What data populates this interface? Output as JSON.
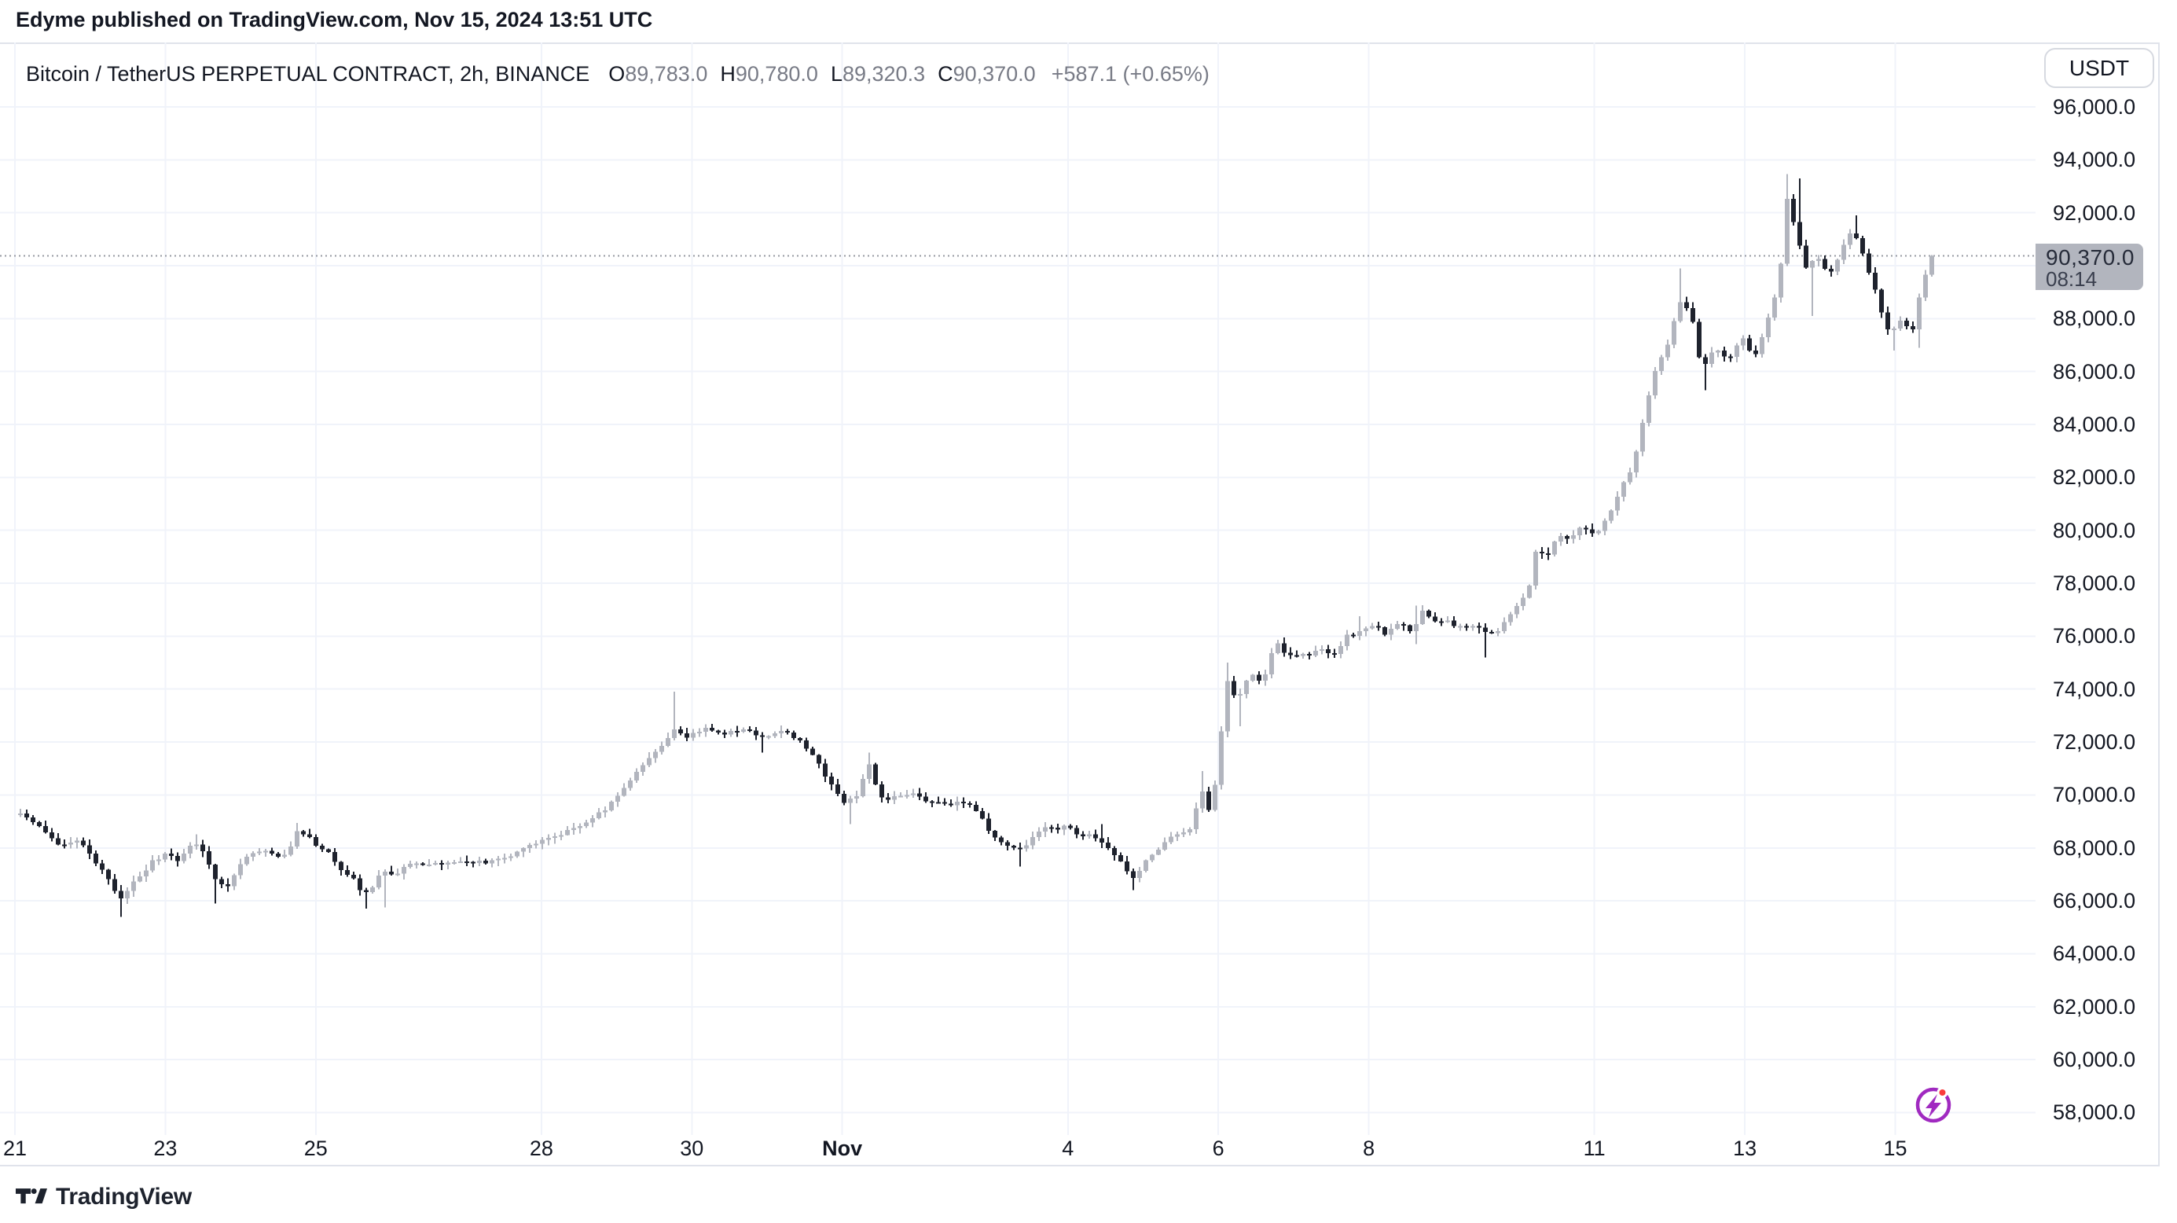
{
  "published_line": "Edyme published on TradingView.com, Nov 15, 2024 13:51 UTC",
  "chart_header": {
    "symbol_title": "Bitcoin / TetherUS PERPETUAL CONTRACT, 2h, BINANCE",
    "ohlc": {
      "o_label": "O",
      "o": "89,783.0",
      "h_label": "H",
      "h": "90,780.0",
      "l_label": "L",
      "l": "89,320.3",
      "c_label": "C",
      "c": "90,370.0",
      "change": "+587.1 (+0.65%)"
    }
  },
  "price_axis": {
    "currency_label": "USDT",
    "labels": [
      {
        "value": 96000,
        "text": "96,000.0"
      },
      {
        "value": 94000,
        "text": "94,000.0"
      },
      {
        "value": 92000,
        "text": "92,000.0"
      },
      {
        "value": 88000,
        "text": "88,000.0"
      },
      {
        "value": 86000,
        "text": "86,000.0"
      },
      {
        "value": 84000,
        "text": "84,000.0"
      },
      {
        "value": 82000,
        "text": "82,000.0"
      },
      {
        "value": 80000,
        "text": "80,000.0"
      },
      {
        "value": 78000,
        "text": "78,000.0"
      },
      {
        "value": 76000,
        "text": "76,000.0"
      },
      {
        "value": 74000,
        "text": "74,000.0"
      },
      {
        "value": 72000,
        "text": "72,000.0"
      },
      {
        "value": 70000,
        "text": "70,000.0"
      },
      {
        "value": 68000,
        "text": "68,000.0"
      },
      {
        "value": 66000,
        "text": "66,000.0"
      },
      {
        "value": 64000,
        "text": "64,000.0"
      },
      {
        "value": 62000,
        "text": "62,000.0"
      },
      {
        "value": 60000,
        "text": "60,000.0"
      },
      {
        "value": 58000,
        "text": "58,000.0"
      }
    ],
    "last_price_badge": {
      "text": "90,370.0",
      "countdown": "08:14",
      "value": 90370
    }
  },
  "time_axis": {
    "ticks": [
      {
        "day": 0,
        "label": "21",
        "bold": false
      },
      {
        "day": 2,
        "label": "23",
        "bold": false
      },
      {
        "day": 4,
        "label": "25",
        "bold": false
      },
      {
        "day": 7,
        "label": "28",
        "bold": false
      },
      {
        "day": 9,
        "label": "30",
        "bold": false
      },
      {
        "day": 11,
        "label": "Nov",
        "bold": true
      },
      {
        "day": 14,
        "label": "4",
        "bold": false
      },
      {
        "day": 16,
        "label": "6",
        "bold": false
      },
      {
        "day": 18,
        "label": "8",
        "bold": false
      },
      {
        "day": 21,
        "label": "11",
        "bold": false
      },
      {
        "day": 23,
        "label": "13",
        "bold": false
      },
      {
        "day": 25,
        "label": "15",
        "bold": false
      }
    ]
  },
  "footer": {
    "brand": "TradingView"
  },
  "colors": {
    "up": "#B2B5BE",
    "down": "#1E222D",
    "grid": "#F0F3FA",
    "frame": "#E0E3EB",
    "text": "#131722",
    "muted": "#787B86",
    "dotted_line": "#9598A1",
    "badge_bg": "#B2B5BE",
    "accent_purple": "#A02AC0",
    "accent_red": "#FA3C3C"
  },
  "chart_data": {
    "type": "candlestick",
    "title": "Bitcoin / TetherUS PERPETUAL CONTRACT, 2h, BINANCE",
    "symbol": "BTCUSDT PERPETUAL",
    "exchange": "BINANCE",
    "timeframe": "2h",
    "quote_unit": "USDT",
    "grid": true,
    "legend_position": "none",
    "x_axis": {
      "unit": "days_since_Oct21_2024_00utc",
      "visible_range": [
        0,
        26.9
      ],
      "tick_days": [
        0,
        2,
        4,
        7,
        9,
        11,
        14,
        16,
        18,
        21,
        23,
        25
      ]
    },
    "y_axis": {
      "visible_range": [
        56700,
        98400
      ],
      "tick_step": 2000,
      "ticks": [
        58000,
        60000,
        62000,
        64000,
        66000,
        68000,
        70000,
        72000,
        74000,
        76000,
        78000,
        80000,
        82000,
        84000,
        86000,
        88000,
        90000,
        92000,
        94000,
        96000
      ]
    },
    "ohlc_current": {
      "open": 89783.0,
      "high": 90780.0,
      "low": 89320.3,
      "close": 90370.0,
      "change": 587.1,
      "change_pct": 0.65
    },
    "last_close": 90370,
    "key_points": {
      "period_low": 65400,
      "oct29_high": 73900,
      "nov13_high": 93458,
      "last_close": 90370
    },
    "close_path_anchors": [
      [
        -0.11,
        69500
      ],
      [
        0.11,
        69250
      ],
      [
        0.38,
        68800
      ],
      [
        0.64,
        68150
      ],
      [
        0.84,
        68300
      ],
      [
        1.04,
        67800
      ],
      [
        1.26,
        66900
      ],
      [
        1.45,
        66100
      ],
      [
        1.63,
        66700
      ],
      [
        1.84,
        67400
      ],
      [
        2.04,
        67800
      ],
      [
        2.23,
        67500
      ],
      [
        2.39,
        68200
      ],
      [
        2.53,
        67900
      ],
      [
        2.7,
        66900
      ],
      [
        2.85,
        66500
      ],
      [
        3.02,
        67300
      ],
      [
        3.16,
        67800
      ],
      [
        3.36,
        67900
      ],
      [
        3.54,
        67600
      ],
      [
        3.68,
        67800
      ],
      [
        3.79,
        68600
      ],
      [
        3.92,
        68550
      ],
      [
        4.06,
        68100
      ],
      [
        4.21,
        67800
      ],
      [
        4.37,
        67100
      ],
      [
        4.52,
        66900
      ],
      [
        4.66,
        66200
      ],
      [
        4.79,
        66500
      ],
      [
        4.92,
        67100
      ],
      [
        5.07,
        66900
      ],
      [
        5.25,
        67300
      ],
      [
        5.5,
        67450
      ],
      [
        5.75,
        67350
      ],
      [
        6.06,
        67500
      ],
      [
        6.37,
        67450
      ],
      [
        6.69,
        67800
      ],
      [
        7.0,
        68250
      ],
      [
        7.3,
        68550
      ],
      [
        7.57,
        68900
      ],
      [
        7.86,
        69400
      ],
      [
        8.15,
        70300
      ],
      [
        8.41,
        71200
      ],
      [
        8.65,
        71900
      ],
      [
        8.79,
        72500
      ],
      [
        8.97,
        72200
      ],
      [
        9.19,
        72500
      ],
      [
        9.46,
        72300
      ],
      [
        9.72,
        72450
      ],
      [
        9.97,
        72250
      ],
      [
        10.24,
        72400
      ],
      [
        10.47,
        72100
      ],
      [
        10.69,
        71300
      ],
      [
        10.89,
        70400
      ],
      [
        11.09,
        69650
      ],
      [
        11.25,
        70050
      ],
      [
        11.4,
        71200
      ],
      [
        11.55,
        69900
      ],
      [
        11.7,
        69850
      ],
      [
        11.86,
        70000
      ],
      [
        12.01,
        70100
      ],
      [
        12.16,
        69750
      ],
      [
        12.31,
        69800
      ],
      [
        12.47,
        69600
      ],
      [
        12.62,
        69800
      ],
      [
        12.77,
        69550
      ],
      [
        12.92,
        69000
      ],
      [
        13.08,
        68300
      ],
      [
        13.23,
        68050
      ],
      [
        13.33,
        67950
      ],
      [
        13.48,
        68100
      ],
      [
        13.63,
        68500
      ],
      [
        13.74,
        68850
      ],
      [
        13.89,
        68700
      ],
      [
        14.04,
        68900
      ],
      [
        14.16,
        68550
      ],
      [
        14.3,
        68450
      ],
      [
        14.45,
        68350
      ],
      [
        14.6,
        67900
      ],
      [
        14.75,
        67400
      ],
      [
        14.91,
        66850
      ],
      [
        15.06,
        67400
      ],
      [
        15.21,
        67850
      ],
      [
        15.36,
        68300
      ],
      [
        15.52,
        68500
      ],
      [
        15.67,
        68750
      ],
      [
        15.82,
        70200
      ],
      [
        15.9,
        69300
      ],
      [
        15.97,
        69900
      ],
      [
        16.05,
        71400
      ],
      [
        16.15,
        74400
      ],
      [
        16.28,
        73500
      ],
      [
        16.4,
        74300
      ],
      [
        16.52,
        74650
      ],
      [
        16.63,
        74150
      ],
      [
        16.79,
        75850
      ],
      [
        16.91,
        75350
      ],
      [
        17.09,
        75200
      ],
      [
        17.29,
        75350
      ],
      [
        17.45,
        75500
      ],
      [
        17.6,
        75300
      ],
      [
        17.75,
        76000
      ],
      [
        17.9,
        76150
      ],
      [
        18.11,
        76400
      ],
      [
        18.26,
        76100
      ],
      [
        18.41,
        76450
      ],
      [
        18.62,
        76200
      ],
      [
        18.77,
        77100
      ],
      [
        18.92,
        76500
      ],
      [
        19.08,
        76550
      ],
      [
        19.28,
        76350
      ],
      [
        19.43,
        76450
      ],
      [
        19.58,
        76100
      ],
      [
        19.74,
        76200
      ],
      [
        19.89,
        76700
      ],
      [
        20.04,
        77300
      ],
      [
        20.16,
        77600
      ],
      [
        20.27,
        79400
      ],
      [
        20.4,
        78900
      ],
      [
        20.55,
        79900
      ],
      [
        20.7,
        79600
      ],
      [
        20.85,
        80100
      ],
      [
        21.06,
        79800
      ],
      [
        21.23,
        80500
      ],
      [
        21.41,
        81700
      ],
      [
        21.55,
        82400
      ],
      [
        21.7,
        84300
      ],
      [
        21.85,
        86100
      ],
      [
        22.01,
        87000
      ],
      [
        22.17,
        88600
      ],
      [
        22.33,
        88200
      ],
      [
        22.47,
        86000
      ],
      [
        22.64,
        87000
      ],
      [
        22.82,
        86400
      ],
      [
        23.0,
        87300
      ],
      [
        23.16,
        86500
      ],
      [
        23.34,
        87900
      ],
      [
        23.5,
        89400
      ],
      [
        23.6,
        92600
      ],
      [
        23.73,
        91100
      ],
      [
        23.86,
        89900
      ],
      [
        24.0,
        90400
      ],
      [
        24.15,
        89600
      ],
      [
        24.31,
        90500
      ],
      [
        24.46,
        91400
      ],
      [
        24.63,
        90300
      ],
      [
        24.8,
        88800
      ],
      [
        24.96,
        87400
      ],
      [
        25.12,
        87900
      ],
      [
        25.28,
        87600
      ],
      [
        25.4,
        89300
      ],
      [
        25.51,
        90370
      ]
    ],
    "wick_extremes": [
      {
        "t": 1.45,
        "type": "low",
        "price": 65400
      },
      {
        "t": 2.39,
        "type": "high",
        "price": 68520
      },
      {
        "t": 2.7,
        "type": "low",
        "price": 65900
      },
      {
        "t": 3.79,
        "type": "high",
        "price": 68950
      },
      {
        "t": 4.66,
        "type": "low",
        "price": 65700
      },
      {
        "t": 4.92,
        "type": "low",
        "price": 65750
      },
      {
        "t": 8.79,
        "type": "high",
        "price": 73900
      },
      {
        "t": 9.97,
        "type": "low",
        "price": 71600
      },
      {
        "t": 11.09,
        "type": "low",
        "price": 68900
      },
      {
        "t": 11.4,
        "type": "high",
        "price": 71600
      },
      {
        "t": 13.33,
        "type": "low",
        "price": 67300
      },
      {
        "t": 14.45,
        "type": "high",
        "price": 68900
      },
      {
        "t": 14.91,
        "type": "low",
        "price": 66400
      },
      {
        "t": 15.82,
        "type": "high",
        "price": 70900
      },
      {
        "t": 16.15,
        "type": "high",
        "price": 75000
      },
      {
        "t": 16.28,
        "type": "low",
        "price": 72600
      },
      {
        "t": 17.9,
        "type": "high",
        "price": 76750
      },
      {
        "t": 18.62,
        "type": "high",
        "price": 77150
      },
      {
        "t": 18.62,
        "type": "low",
        "price": 75700
      },
      {
        "t": 19.58,
        "type": "low",
        "price": 75200
      },
      {
        "t": 22.17,
        "type": "high",
        "price": 89900
      },
      {
        "t": 22.47,
        "type": "low",
        "price": 85300
      },
      {
        "t": 23.6,
        "type": "high",
        "price": 93458
      },
      {
        "t": 23.73,
        "type": "high",
        "price": 93300
      },
      {
        "t": 23.86,
        "type": "low",
        "price": 88100
      },
      {
        "t": 24.46,
        "type": "high",
        "price": 91900
      },
      {
        "t": 24.96,
        "type": "low",
        "price": 86800
      },
      {
        "t": 25.28,
        "type": "low",
        "price": 86900
      }
    ]
  }
}
